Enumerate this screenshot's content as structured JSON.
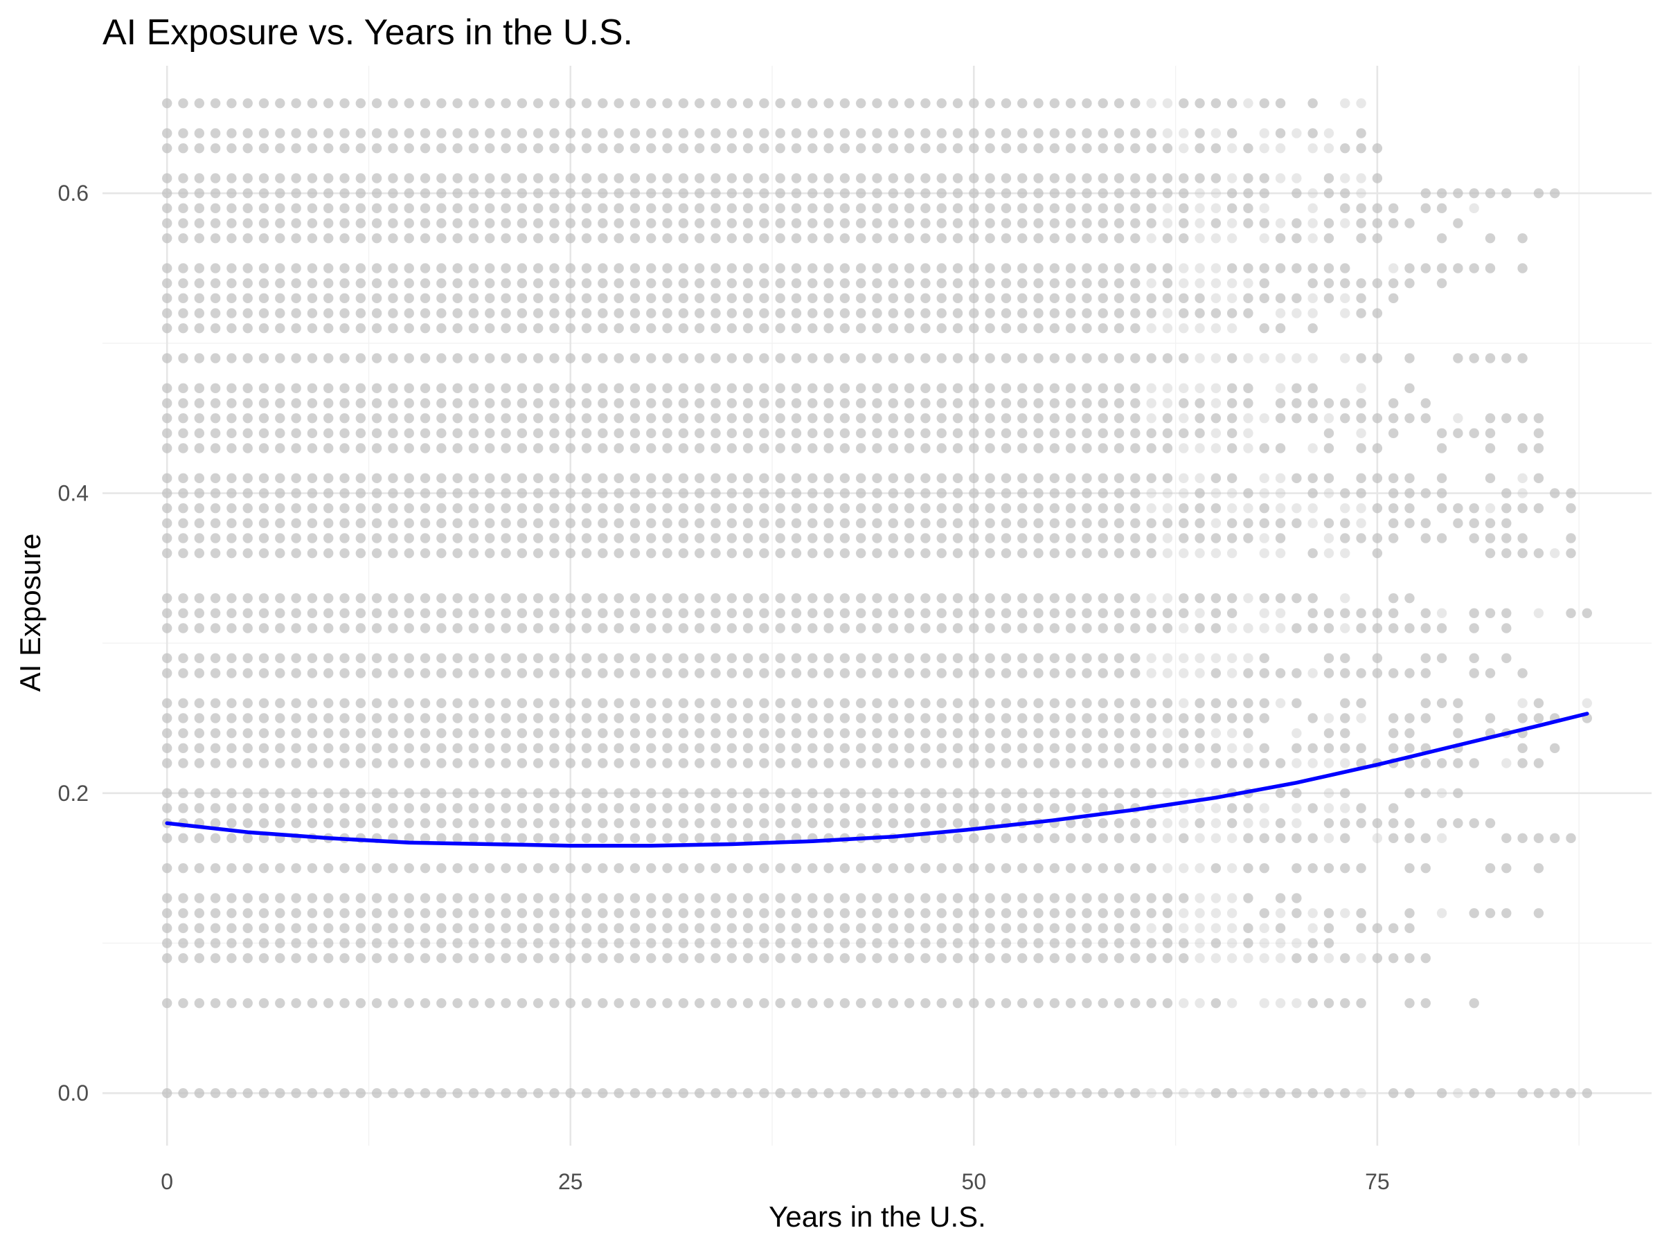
{
  "chart_data": {
    "type": "scatter",
    "title": "AI Exposure vs. Years in the U.S.",
    "xlabel": "Years in the U.S.",
    "ylabel": "AI Exposure",
    "xlim": [
      -4,
      92
    ],
    "ylim": [
      -0.035,
      0.685
    ],
    "x_ticks": [
      0,
      25,
      50,
      75
    ],
    "y_ticks": [
      0.0,
      0.2,
      0.4,
      0.6
    ],
    "x_tick_labels": [
      "0",
      "25",
      "50",
      "75"
    ],
    "y_tick_labels": [
      "0.0",
      "0.2",
      "0.4",
      "0.6"
    ],
    "grid": true,
    "point_color": "#bdbdbd",
    "point_opacity": 0.35,
    "trend_color": "#0000ff",
    "exposure_levels": [
      0.0,
      0.06,
      0.09,
      0.1,
      0.11,
      0.12,
      0.13,
      0.15,
      0.17,
      0.18,
      0.19,
      0.2,
      0.22,
      0.23,
      0.24,
      0.25,
      0.26,
      0.28,
      0.29,
      0.31,
      0.32,
      0.33,
      0.36,
      0.37,
      0.38,
      0.39,
      0.4,
      0.41,
      0.43,
      0.44,
      0.45,
      0.46,
      0.47,
      0.49,
      0.51,
      0.52,
      0.53,
      0.54,
      0.55,
      0.57,
      0.58,
      0.59,
      0.6,
      0.61,
      0.63,
      0.64,
      0.66
    ],
    "level_max_years": {
      "0.0": 88,
      "0.06": 84,
      "0.09": 78,
      "0.10": 72,
      "0.11": 77,
      "0.12": 86,
      "0.13": 70,
      "0.15": 85,
      "0.17": 88,
      "0.18": 83,
      "0.19": 76,
      "0.20": 88,
      "0.22": 88,
      "0.23": 86,
      "0.24": 86,
      "0.25": 88,
      "0.26": 88,
      "0.28": 85,
      "0.29": 86,
      "0.31": 84,
      "0.32": 88,
      "0.33": 77,
      "0.36": 87,
      "0.37": 87,
      "0.38": 86,
      "0.39": 87,
      "0.40": 87,
      "0.41": 86,
      "0.43": 85,
      "0.44": 85,
      "0.45": 85,
      "0.46": 83,
      "0.47": 78,
      "0.49": 85,
      "0.51": 71,
      "0.52": 75,
      "0.53": 76,
      "0.54": 85,
      "0.55": 85,
      "0.57": 84,
      "0.58": 80,
      "0.59": 82,
      "0.60": 86,
      "0.61": 75,
      "0.63": 78,
      "0.64": 74,
      "0.66": 74
    },
    "trend_line": {
      "method": "smooth",
      "x": [
        0,
        5,
        10,
        15,
        20,
        25,
        30,
        35,
        40,
        45,
        50,
        55,
        60,
        65,
        70,
        75,
        80,
        85,
        88
      ],
      "y": [
        0.18,
        0.174,
        0.17,
        0.167,
        0.166,
        0.165,
        0.165,
        0.166,
        0.168,
        0.171,
        0.176,
        0.182,
        0.189,
        0.197,
        0.207,
        0.219,
        0.232,
        0.245,
        0.253
      ]
    }
  }
}
